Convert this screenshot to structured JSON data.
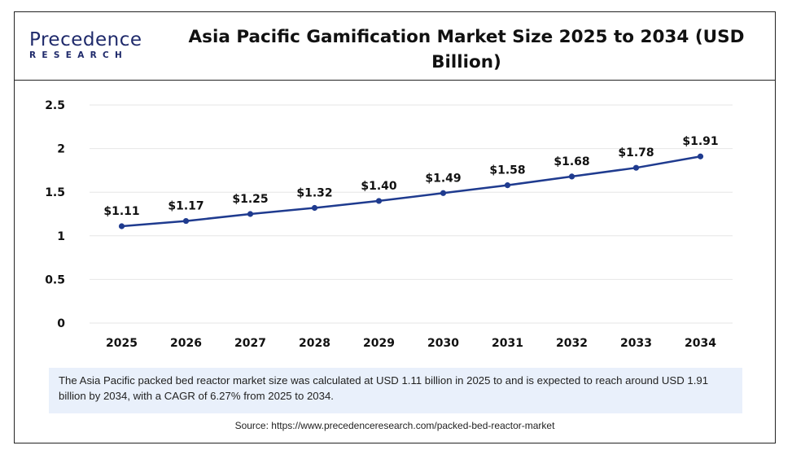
{
  "header": {
    "logo_top": "Precedence",
    "logo_bottom": "RESEARCH",
    "title": "Asia Pacific Gamification Market Size 2025 to 2034 (USD Billion)"
  },
  "note": "The Asia Pacific packed bed reactor market size was calculated at USD 1.11 billion in 2025 to and is expected to reach around USD 1.91 billion by 2034, with a CAGR of 6.27% from 2025 to 2034.",
  "source": "Source: https://www.precedenceresearch.com/packed-bed-reactor-market",
  "colors": {
    "line": "#1f3b8f",
    "grid": "#e6e6e6",
    "logo": "#1f2a6b",
    "note_bg": "#e9f0fb"
  },
  "chart_data": {
    "type": "line",
    "title": "Asia Pacific Gamification Market Size 2025 to 2034 (USD Billion)",
    "categories": [
      "2025",
      "2026",
      "2027",
      "2028",
      "2029",
      "2030",
      "2031",
      "2032",
      "2033",
      "2034"
    ],
    "series": [
      {
        "values": [
          1.11,
          1.17,
          1.25,
          1.32,
          1.4,
          1.49,
          1.58,
          1.68,
          1.78,
          1.91
        ],
        "labels": [
          "$1.11",
          "$1.17",
          "$1.25",
          "$1.32",
          "$1.40",
          "$1.49",
          "$1.58",
          "$1.68",
          "$1.78",
          "$1.91"
        ]
      }
    ],
    "yticks": [
      "0",
      "0.5",
      "1",
      "1.5",
      "2",
      "2.5"
    ],
    "ylim": [
      0,
      2.5
    ],
    "xlabel": "",
    "ylabel": "",
    "grid": true,
    "legend": "none"
  }
}
